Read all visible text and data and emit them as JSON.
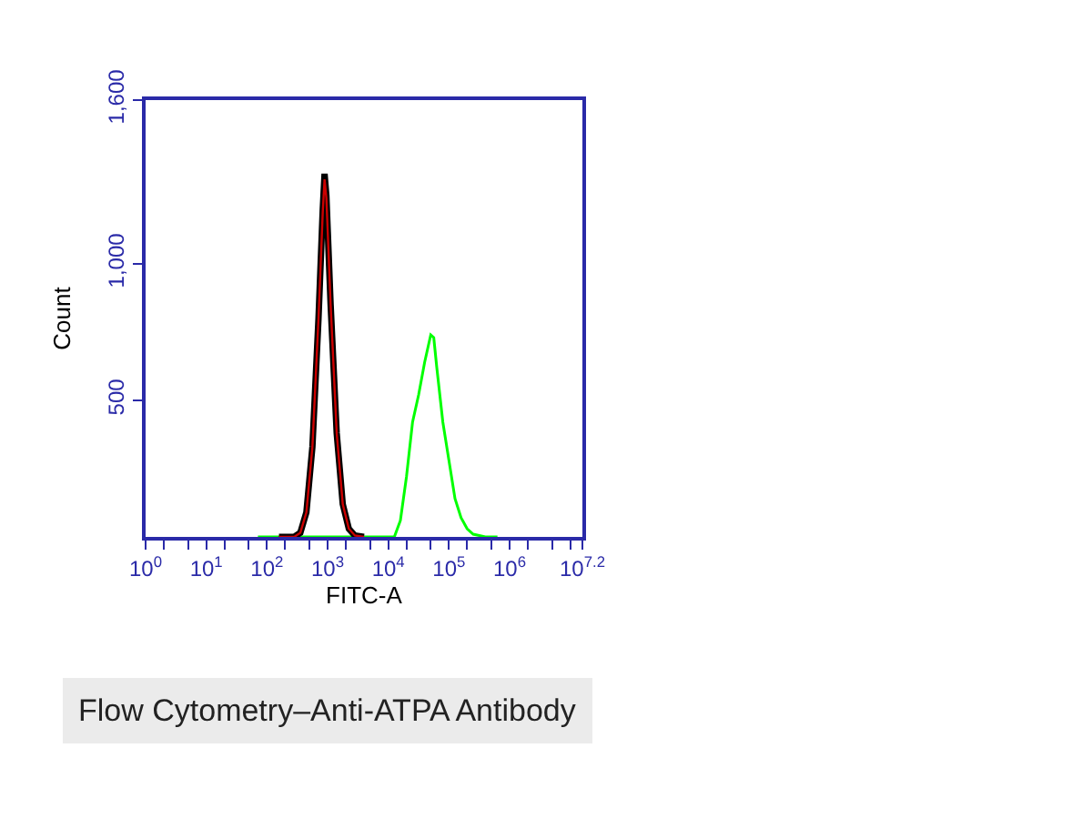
{
  "chart_data": {
    "type": "line",
    "xlabel": "FITC-A",
    "ylabel": "Count",
    "log": "x",
    "xlim": [
      1,
      15848931.9
    ],
    "ylim": [
      0,
      1600
    ],
    "xticks": [
      {
        "value": 1,
        "label": "10$^{0}$"
      },
      {
        "value": 10,
        "label": "10$^{1}$"
      },
      {
        "value": 100,
        "label": "10$^{2}$"
      },
      {
        "value": 1000,
        "label": "10$^{3}$"
      },
      {
        "value": 10000,
        "label": "10$^{4}$"
      },
      {
        "value": 100000,
        "label": "10$^{5}$"
      },
      {
        "value": 1000000,
        "label": "10$^{6}$"
      },
      {
        "value": 15848931.9,
        "label": "10$^{7.2}$"
      }
    ],
    "yticks": [
      500,
      {
        "value": 1000,
        "label": "1,000"
      },
      {
        "value": 1600,
        "label": "1,600"
      }
    ],
    "marker": "none",
    "line_style": "solid",
    "annotations": [
      "Flow Cytometry–Anti-ATPA Antibody"
    ],
    "series": [
      {
        "color": "#00ff00",
        "x": [
          71,
          12589,
          15849,
          19953,
          25119,
          31623,
          39811,
          50119,
          56234,
          63096,
          79433,
          100000,
          125893,
          158489,
          199526,
          251189,
          398107,
          630957
        ],
        "values": [
          0,
          0,
          60,
          220,
          420,
          520,
          640,
          740,
          730,
          620,
          420,
          280,
          140,
          70,
          30,
          10,
          0,
          0
        ]
      },
      {
        "color": "#000000",
        "x": [
          158,
          282,
          355,
          447,
          562,
          708,
          832,
          891,
          955,
          1122,
          1413,
          1778,
          2239,
          2818,
          3981
        ],
        "values": [
          0,
          0,
          15,
          90,
          330,
          800,
          1200,
          1330,
          1250,
          850,
          380,
          120,
          30,
          5,
          0
        ]
      },
      {
        "color": "#cc0000",
        "x": [
          158,
          282,
          355,
          447,
          562,
          708,
          832,
          891,
          955,
          1122,
          1413,
          1778,
          2239,
          2818,
          3981
        ],
        "values": [
          0,
          0,
          15,
          90,
          330,
          800,
          1190,
          1310,
          1240,
          850,
          380,
          120,
          30,
          5,
          0
        ]
      }
    ]
  }
}
